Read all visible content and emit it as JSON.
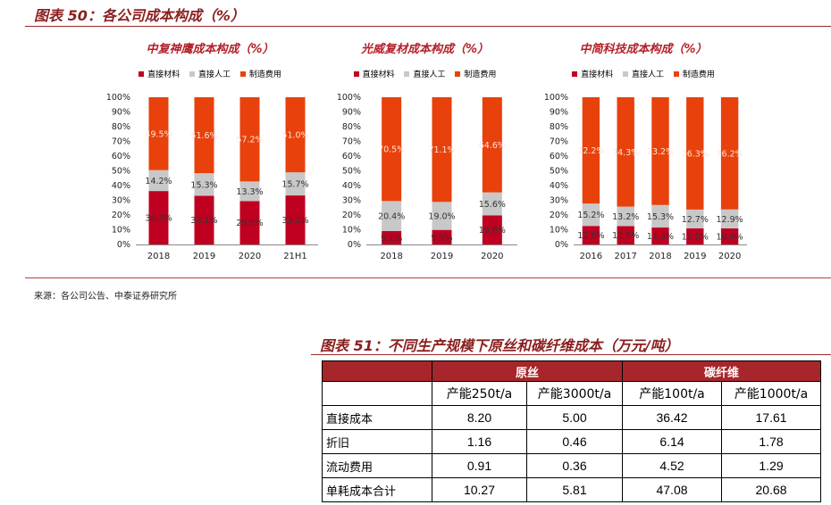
{
  "figure50": {
    "title": "图表 50：各公司成本构成（%）",
    "source": "来源：各公司公告、中泰证券研究所"
  },
  "colors": {
    "material": "#c00020",
    "labor": "#c8c8c8",
    "manufacturing": "#e8410c",
    "title_red": "#b3202a",
    "header_fill": "#a7262b"
  },
  "chart_data": [
    {
      "type": "bar",
      "stacked": true,
      "title": "中复神鹰成本构成（%）",
      "categories": [
        "2018",
        "2019",
        "2020",
        "21H1"
      ],
      "series": [
        {
          "name": "直接材料",
          "values": [
            36.3,
            33.1,
            29.5,
            33.3
          ]
        },
        {
          "name": "直接人工",
          "values": [
            14.2,
            15.3,
            13.3,
            15.7
          ]
        },
        {
          "name": "制造费用",
          "values": [
            49.5,
            51.6,
            57.2,
            51.0
          ]
        }
      ],
      "labels": [
        [
          "36.3%",
          "33.1%",
          "29.5%",
          "33.3%"
        ],
        [
          "14.2%",
          "15.3%",
          "13.3%",
          "15.7%"
        ],
        [
          "49.5%",
          "51.6%",
          "57.2%",
          "51.0%"
        ]
      ],
      "ylim": [
        0,
        100
      ],
      "yticks": [
        "0%",
        "10%",
        "20%",
        "30%",
        "40%",
        "50%",
        "60%",
        "70%",
        "80%",
        "90%",
        "100%"
      ],
      "legend": "top"
    },
    {
      "type": "bar",
      "stacked": true,
      "title": "光威复材成本构成（%）",
      "categories": [
        "2018",
        "2019",
        "2020"
      ],
      "series": [
        {
          "name": "直接材料",
          "values": [
            9.1,
            9.9,
            19.8
          ]
        },
        {
          "name": "直接人工",
          "values": [
            20.4,
            19.0,
            15.6
          ]
        },
        {
          "name": "制造费用",
          "values": [
            70.5,
            71.1,
            64.6
          ]
        }
      ],
      "labels": [
        [
          "9.1%",
          "9.9%",
          "19.8%"
        ],
        [
          "20.4%",
          "19.0%",
          "15.6%"
        ],
        [
          "70.5%",
          "71.1%",
          "64.6%"
        ]
      ],
      "ylim": [
        0,
        100
      ],
      "yticks": [
        "0%",
        "10%",
        "20%",
        "30%",
        "40%",
        "50%",
        "60%",
        "70%",
        "80%",
        "90%",
        "100%"
      ],
      "legend": "top"
    },
    {
      "type": "bar",
      "stacked": true,
      "title": "中简科技成本构成（%）",
      "categories": [
        "2016",
        "2017",
        "2018",
        "2019",
        "2020"
      ],
      "series": [
        {
          "name": "直接材料",
          "values": [
            12.6,
            12.5,
            11.5,
            11.0,
            10.9
          ]
        },
        {
          "name": "直接人工",
          "values": [
            15.2,
            13.2,
            15.3,
            12.7,
            12.9
          ]
        },
        {
          "name": "制造费用",
          "values": [
            72.2,
            74.3,
            73.2,
            76.3,
            76.2
          ]
        }
      ],
      "labels": [
        [
          "12.6%",
          "12.5%",
          "11.5%",
          "11.0%",
          "10.9%"
        ],
        [
          "15.2%",
          "13.2%",
          "15.3%",
          "12.7%",
          "12.9%"
        ],
        [
          "72.2%",
          "74.3%",
          "73.2%",
          "76.3%",
          "76.2%"
        ]
      ],
      "ylim": [
        0,
        100
      ],
      "yticks": [
        "0%",
        "10%",
        "20%",
        "30%",
        "40%",
        "50%",
        "60%",
        "70%",
        "80%",
        "90%",
        "100%"
      ],
      "legend": "top"
    }
  ],
  "figure51": {
    "title": "图表 51：不同生产规模下原丝和碳纤维成本（万元/吨）",
    "groups": [
      "原丝",
      "碳纤维"
    ],
    "subheaders": [
      "产能250t/a",
      "产能3000t/a",
      "产能100t/a",
      "产能1000t/a"
    ],
    "rows": [
      {
        "label": "直接成本",
        "values": [
          "8.20",
          "5.00",
          "36.42",
          "17.61"
        ]
      },
      {
        "label": "折旧",
        "values": [
          "1.16",
          "0.46",
          "6.14",
          "1.78"
        ]
      },
      {
        "label": "流动费用",
        "values": [
          "0.91",
          "0.36",
          "4.52",
          "1.29"
        ]
      },
      {
        "label": "单耗成本合计",
        "values": [
          "10.27",
          "5.81",
          "47.08",
          "20.68"
        ]
      }
    ]
  }
}
